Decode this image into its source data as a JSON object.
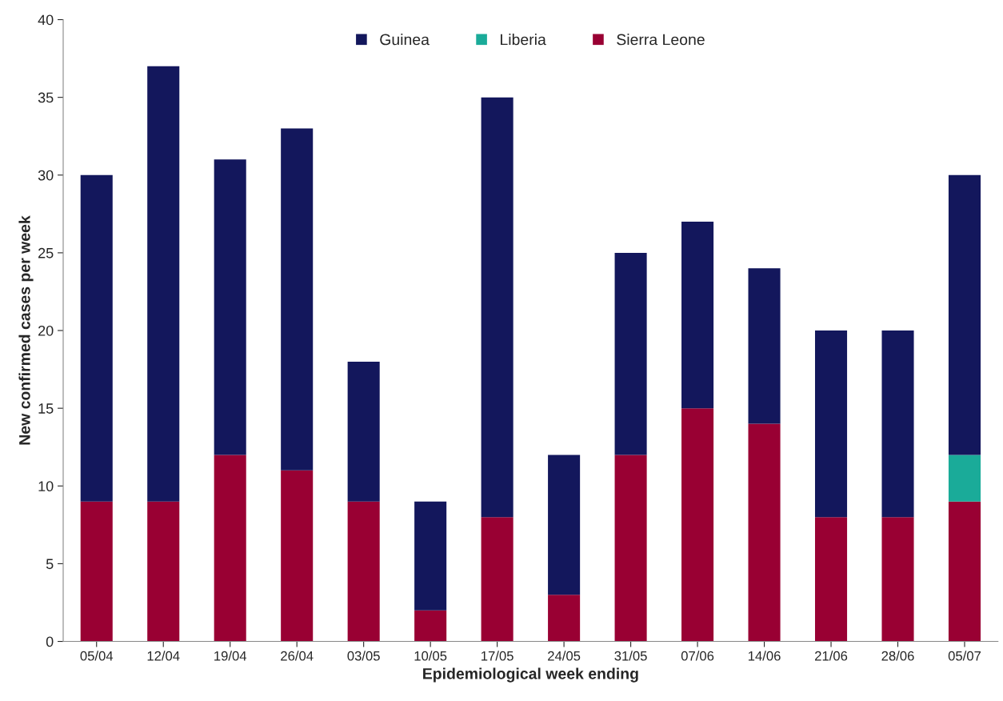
{
  "chart_data": {
    "type": "bar",
    "stacked": true,
    "xlabel": "Epidemiological week ending",
    "ylabel": "New confirmed cases per week",
    "categories": [
      "05/04",
      "12/04",
      "19/04",
      "26/04",
      "03/05",
      "10/05",
      "17/05",
      "24/05",
      "31/05",
      "07/06",
      "14/06",
      "21/06",
      "28/06",
      "05/07"
    ],
    "series": [
      {
        "name": "Sierra Leone",
        "color": "#990033",
        "values": [
          9,
          9,
          12,
          11,
          9,
          2,
          8,
          3,
          12,
          15,
          14,
          8,
          8,
          9
        ]
      },
      {
        "name": "Liberia",
        "color": "#1aab99",
        "values": [
          0,
          0,
          0,
          0,
          0,
          0,
          0,
          0,
          0,
          0,
          0,
          0,
          0,
          3
        ]
      },
      {
        "name": "Guinea",
        "color": "#13175c",
        "values": [
          21,
          28,
          19,
          22,
          9,
          7,
          27,
          9,
          13,
          12,
          10,
          12,
          12,
          18
        ]
      }
    ],
    "ylim": [
      0,
      40
    ],
    "yticks": [
      0,
      5,
      10,
      15,
      20,
      25,
      30,
      35,
      40
    ],
    "grid": false,
    "legend": "top"
  }
}
